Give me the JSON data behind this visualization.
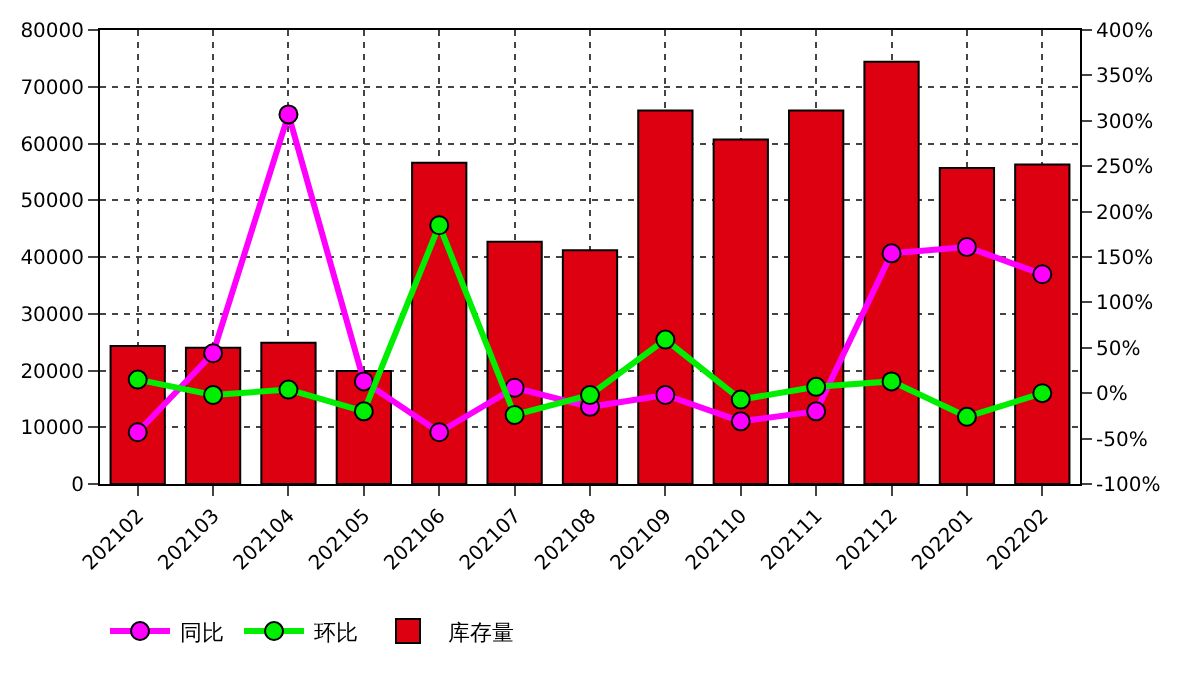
{
  "chart_data": {
    "type": "bar",
    "categories": [
      "202102",
      "202103",
      "202104",
      "202105",
      "202106",
      "202107",
      "202108",
      "202109",
      "202110",
      "202111",
      "202112",
      "202201",
      "202202"
    ],
    "series": [
      {
        "name": "同比",
        "type": "line",
        "axis": "y2",
        "color": "#ff00ff",
        "values": [
          -43,
          44,
          307,
          13,
          -43,
          6,
          -15,
          -2,
          -31,
          -20,
          154,
          161,
          131
        ]
      },
      {
        "name": "环比",
        "type": "line",
        "axis": "y2",
        "color": "#00ee00",
        "values": [
          15,
          -2,
          4,
          -20,
          185,
          -24,
          -2,
          59,
          -7,
          7,
          13,
          -26,
          0
        ]
      },
      {
        "name": "库存量",
        "color": "#dd0011",
        "values": [
          24300,
          24000,
          24900,
          19900,
          56600,
          42700,
          41200,
          65800,
          60700,
          65800,
          74400,
          55700,
          56300
        ]
      }
    ],
    "ylim": [
      0,
      80000
    ],
    "yticks": [
      0,
      10000,
      20000,
      30000,
      40000,
      50000,
      60000,
      70000,
      80000
    ],
    "y2lim": [
      -100,
      400
    ],
    "y2ticks": [
      {
        "value": -100,
        "label": "-100%"
      },
      {
        "value": -50,
        "label": "-50%"
      },
      {
        "value": 0,
        "label": "0%"
      },
      {
        "value": 50,
        "label": "50%"
      },
      {
        "value": 100,
        "label": "100%"
      },
      {
        "value": 150,
        "label": "150%"
      },
      {
        "value": 200,
        "label": "200%"
      },
      {
        "value": 250,
        "label": "250%"
      },
      {
        "value": 300,
        "label": "300%"
      },
      {
        "value": 350,
        "label": "350%"
      },
      {
        "value": 400,
        "label": "400%"
      }
    ],
    "grid": true,
    "legend": "bottom left",
    "marker": "circle",
    "line_style": "solid"
  }
}
